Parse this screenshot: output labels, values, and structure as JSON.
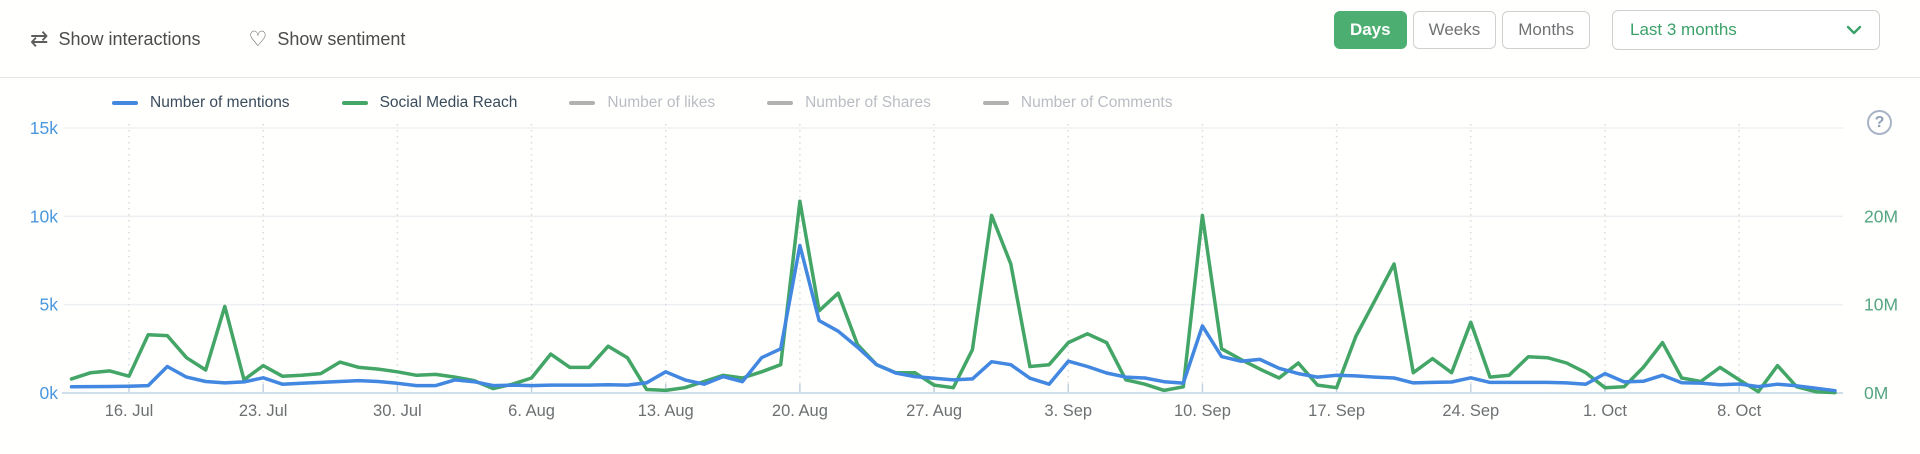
{
  "topbar": {
    "show_interactions": "Show interactions",
    "show_sentiment": "Show sentiment",
    "granularity": {
      "days": "Days",
      "weeks": "Weeks",
      "months": "Months"
    },
    "range_selected": "Last 3 months"
  },
  "help_icon": "?",
  "colors": {
    "active_button_green": "#4cae70",
    "select_text_green": "#3ba169",
    "mentions_blue": "#4287e0",
    "reach_green": "#43a566",
    "disabled_gray": "#b2b2b2",
    "left_axis_label": "#4b97de",
    "right_axis_label": "#55a483",
    "x_label": "#6d7072",
    "gridline": "#edf0f2",
    "v_gridline": "#d8dadc",
    "baseline": "#cfdeeb",
    "tick": "#c3d2e0"
  },
  "chart_data": {
    "type": "line",
    "title": "",
    "legend": [
      {
        "name": "Number of mentions",
        "active": true,
        "color": "#4287e0"
      },
      {
        "name": "Social Media Reach",
        "active": true,
        "color": "#43a566"
      },
      {
        "name": "Number of likes",
        "active": false,
        "color": "#b2b2b2"
      },
      {
        "name": "Number of Shares",
        "active": false,
        "color": "#b2b2b2"
      },
      {
        "name": "Number of Comments",
        "active": false,
        "color": "#b2b2b2"
      }
    ],
    "left_axis": {
      "tick_labels": [
        "0k",
        "5k",
        "10k",
        "15k"
      ],
      "tick_values": [
        0,
        5,
        10,
        15
      ],
      "max": 15,
      "unit": "k"
    },
    "right_axis": {
      "tick_labels": [
        "0M",
        "10M",
        "20M"
      ],
      "tick_values": [
        0,
        10,
        20
      ],
      "max": 30,
      "unit": "M"
    },
    "x_ticks": {
      "labels": [
        "16. Jul",
        "23. Jul",
        "30. Jul",
        "6. Aug",
        "13. Aug",
        "20. Aug",
        "27. Aug",
        "3. Sep",
        "10. Sep",
        "17. Sep",
        "24. Sep",
        "1. Oct",
        "8. Oct"
      ],
      "day_indices": [
        3,
        10,
        17,
        24,
        31,
        38,
        45,
        52,
        59,
        66,
        73,
        80,
        87
      ]
    },
    "grid": {
      "horizontal": true,
      "vertical_dotted": true
    },
    "series": [
      {
        "name": "Number of mentions",
        "axis": "left",
        "unit": "k",
        "color": "#4287e0",
        "values": [
          0.35,
          0.36,
          0.37,
          0.38,
          0.42,
          1.5,
          0.9,
          0.65,
          0.57,
          0.63,
          0.86,
          0.5,
          0.55,
          0.6,
          0.65,
          0.7,
          0.65,
          0.55,
          0.42,
          0.42,
          0.74,
          0.64,
          0.42,
          0.45,
          0.42,
          0.45,
          0.45,
          0.45,
          0.47,
          0.45,
          0.58,
          1.2,
          0.74,
          0.5,
          0.93,
          0.64,
          2.0,
          2.5,
          8.35,
          4.1,
          3.5,
          2.6,
          1.6,
          1.13,
          0.93,
          0.84,
          0.74,
          0.8,
          1.77,
          1.6,
          0.84,
          0.5,
          1.8,
          1.5,
          1.13,
          0.9,
          0.85,
          0.64,
          0.56,
          3.8,
          2.06,
          1.8,
          1.9,
          1.4,
          1.1,
          0.9,
          1.0,
          0.97,
          0.9,
          0.85,
          0.57,
          0.6,
          0.62,
          0.86,
          0.6,
          0.6,
          0.6,
          0.6,
          0.57,
          0.5,
          1.1,
          0.63,
          0.66,
          1.0,
          0.58,
          0.56,
          0.47,
          0.51,
          0.36,
          0.5,
          0.41,
          0.27,
          0.13
        ]
      },
      {
        "name": "Social Media Reach",
        "axis": "right",
        "unit": "M",
        "color": "#43a566",
        "values": [
          1.6,
          2.3,
          2.5,
          1.9,
          6.6,
          6.5,
          4.0,
          2.6,
          9.8,
          1.5,
          3.1,
          1.9,
          2.0,
          2.2,
          3.5,
          2.9,
          2.7,
          2.4,
          2.0,
          2.1,
          1.8,
          1.4,
          0.5,
          1.0,
          1.7,
          4.4,
          2.9,
          2.9,
          5.3,
          4.0,
          0.4,
          0.3,
          0.6,
          1.3,
          2.0,
          1.7,
          2.4,
          3.2,
          21.7,
          9.3,
          11.3,
          5.5,
          3.2,
          2.3,
          2.3,
          0.9,
          0.6,
          4.9,
          20.1,
          14.6,
          3.0,
          3.2,
          5.7,
          6.7,
          5.7,
          1.5,
          1.0,
          0.3,
          0.7,
          20.1,
          5.0,
          3.8,
          2.7,
          1.7,
          3.4,
          0.9,
          0.6,
          6.4,
          10.5,
          14.6,
          2.3,
          3.9,
          2.3,
          8.0,
          1.8,
          2.0,
          4.1,
          4.0,
          3.4,
          2.3,
          0.6,
          0.7,
          2.9,
          5.7,
          1.7,
          1.3,
          2.9,
          1.5,
          0.15,
          3.1,
          0.7,
          0.15,
          0.05
        ]
      }
    ]
  }
}
